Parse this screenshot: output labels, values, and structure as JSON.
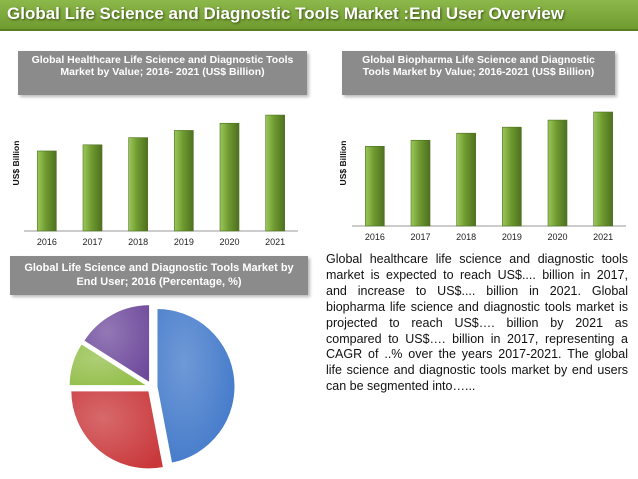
{
  "page": {
    "title": "Global Life Science and Diagnostic Tools Market :End User Overview"
  },
  "colors": {
    "banner": "#7ba63a",
    "bar": "#6f9a30",
    "header_box": "#8b8b8b"
  },
  "chart_data": [
    {
      "type": "bar",
      "title": "Global Healthcare Life Science and Diagnostic Tools Market by Value; 2016- 2021 (US$ Billion)",
      "categories": [
        "2016",
        "2017",
        "2018",
        "2019",
        "2020",
        "2021"
      ],
      "values": [
        78,
        84,
        91,
        98,
        105,
        113
      ],
      "ylabel": "US$ Billion",
      "ylim": [
        0,
        115
      ],
      "grid": false
    },
    {
      "type": "bar",
      "title": "Global Biopharma Life Science and Diagnostic Tools Market by Value; 2016-2021 (US$ Billion)",
      "categories": [
        "2016",
        "2017",
        "2018",
        "2019",
        "2020",
        "2021"
      ],
      "values": [
        79,
        85,
        92,
        98,
        105,
        113
      ],
      "ylabel": "US$ Billion",
      "ylim": [
        0,
        115
      ],
      "grid": false
    },
    {
      "type": "pie",
      "title": "Global Life Science and Diagnostic Tools Market by End User; 2016 (Percentage, %)",
      "values": [
        47,
        28,
        9,
        16
      ],
      "colors": [
        "#3f77c9",
        "#c9373a",
        "#92be48",
        "#6e4a9c"
      ]
    }
  ],
  "text": {
    "paragraph": "Global healthcare life science and diagnostic tools market is expected to reach US$.... billion in 2017, and increase to US$.... billion in 2021. Global biopharma life science and diagnostic tools market is projected to reach US$…. billion by 2021 as compared to US$…. billion in 2017, representing a CAGR of ..% over the years 2017-2021. The global life science and diagnostic tools market by end users can be segmented into…..."
  }
}
